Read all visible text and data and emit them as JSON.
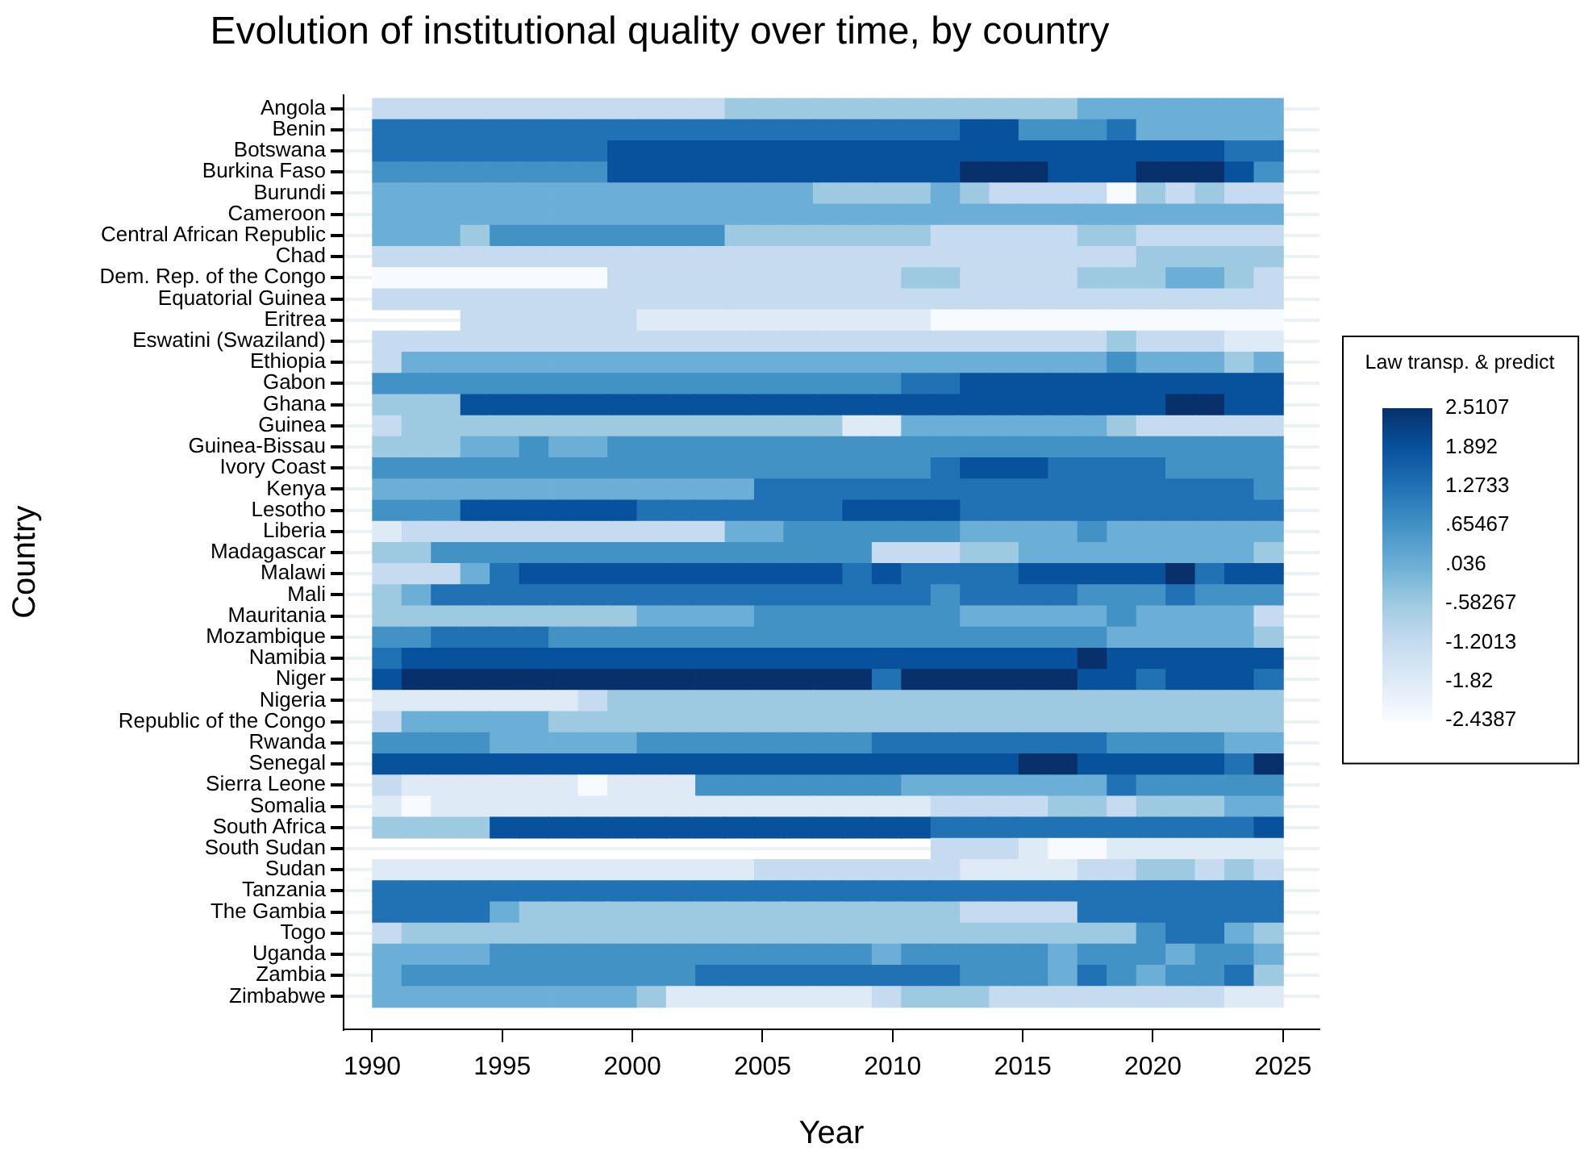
{
  "chart_data": {
    "type": "heatmap",
    "title": "Evolution of institutional quality over time, by country",
    "xlabel": "Year",
    "ylabel": "Country",
    "clabel": "Law transp. & predict",
    "x": [
      1990.56,
      1991.69,
      1992.82,
      1993.95,
      1995.08,
      1996.21,
      1997.34,
      1998.47,
      1999.6,
      2000.73,
      2001.85,
      2002.98,
      2004.11,
      2005.24,
      2006.37,
      2007.5,
      2008.63,
      2009.76,
      2010.89,
      2012.02,
      2013.15,
      2014.27,
      2015.4,
      2016.53,
      2017.66,
      2018.79,
      2019.92,
      2021.05,
      2022.18,
      2023.31,
      2024.44
    ],
    "xlim": [
      1988.9,
      2026.4
    ],
    "xticks": [
      1990,
      1995,
      2000,
      2005,
      2010,
      2015,
      2020,
      2025
    ],
    "grid": "y",
    "y_categories": [
      "Angola",
      "Benin",
      "Botswana",
      "Burkina Faso",
      "Burundi",
      "Cameroon",
      "Central African Republic",
      "Chad",
      "Dem. Rep. of the Congo",
      "Equatorial Guinea",
      "Eritrea",
      "Eswatini (Swaziland)",
      "Ethiopia",
      "Gabon",
      "Ghana",
      "Guinea",
      "Guinea-Bissau",
      "Ivory Coast",
      "Kenya",
      "Lesotho",
      "Liberia",
      "Madagascar",
      "Malawi",
      "Mali",
      "Mauritania",
      "Mozambique",
      "Namibia",
      "Niger",
      "Nigeria",
      "Republic of the Congo",
      "Rwanda",
      "Senegal",
      "Sierra Leone",
      "Somalia",
      "South Africa",
      "South Sudan",
      "Sudan",
      "Tanzania",
      "The Gambia",
      "Togo",
      "Uganda",
      "Zambia",
      "Zimbabwe"
    ],
    "cticks": [
      2.5107,
      1.892,
      1.2733,
      {
        "value": 0.65467,
        "label": ".65467"
      },
      {
        "value": 0.036,
        "label": ".036"
      },
      {
        "value": -0.58267,
        "label": "-.58267"
      },
      -1.2013,
      -1.82,
      -2.4387
    ],
    "clim": [
      -2.4387,
      2.5107
    ],
    "colors": [
      "#08306b",
      "#08519c",
      "#2171b5",
      "#4292c6",
      "#6baed6",
      "#9ecae1",
      "#c6dbef",
      "#deebf7",
      "#f7fbff"
    ],
    "cells": [
      [
        -1.2013,
        -1.2013,
        -1.2013,
        -1.2013,
        -1.2013,
        -1.2013,
        -1.2013,
        -1.2013,
        -1.2013,
        -1.2013,
        -1.2013,
        -1.2013,
        -0.58267,
        -0.58267,
        -0.58267,
        -0.58267,
        -0.58267,
        -0.58267,
        -0.58267,
        -0.58267,
        -0.58267,
        -0.58267,
        -0.58267,
        -0.58267,
        0.036,
        0.036,
        0.036,
        0.036,
        0.036,
        0.036,
        0.036
      ],
      [
        1.2733,
        1.2733,
        1.2733,
        1.2733,
        1.2733,
        1.2733,
        1.2733,
        1.2733,
        1.2733,
        1.2733,
        1.2733,
        1.2733,
        1.2733,
        1.2733,
        1.2733,
        1.2733,
        1.2733,
        1.2733,
        1.2733,
        1.2733,
        1.892,
        1.892,
        0.65467,
        0.65467,
        0.65467,
        1.2733,
        0.036,
        0.036,
        0.036,
        0.036,
        0.036
      ],
      [
        1.2733,
        1.2733,
        1.2733,
        1.2733,
        1.2733,
        1.2733,
        1.2733,
        1.2733,
        1.892,
        1.892,
        1.892,
        1.892,
        1.892,
        1.892,
        1.892,
        1.892,
        1.892,
        1.892,
        1.892,
        1.892,
        1.892,
        1.892,
        1.892,
        1.892,
        1.892,
        1.892,
        1.892,
        1.892,
        1.892,
        1.2733,
        1.2733
      ],
      [
        0.65467,
        0.65467,
        0.65467,
        0.65467,
        0.65467,
        0.65467,
        0.65467,
        0.65467,
        1.892,
        1.892,
        1.892,
        1.892,
        1.892,
        1.892,
        1.892,
        1.892,
        1.892,
        1.892,
        1.892,
        1.892,
        2.5107,
        2.5107,
        2.5107,
        1.892,
        1.892,
        1.892,
        2.5107,
        2.5107,
        2.5107,
        1.892,
        0.65467
      ],
      [
        0.036,
        0.036,
        0.036,
        0.036,
        0.036,
        0.036,
        0.036,
        0.036,
        0.036,
        0.036,
        0.036,
        0.036,
        0.036,
        0.036,
        0.036,
        -0.58267,
        -0.58267,
        -0.58267,
        -0.58267,
        0.036,
        -0.58267,
        -1.2013,
        -1.2013,
        -1.2013,
        -1.2013,
        -2.4387,
        -0.58267,
        -1.2013,
        -0.58267,
        -1.2013,
        -1.2013
      ],
      [
        0.036,
        0.036,
        0.036,
        0.036,
        0.036,
        0.036,
        0.036,
        0.036,
        0.036,
        0.036,
        0.036,
        0.036,
        0.036,
        0.036,
        0.036,
        0.036,
        0.036,
        0.036,
        0.036,
        0.036,
        0.036,
        0.036,
        0.036,
        0.036,
        0.036,
        0.036,
        0.036,
        0.036,
        0.036,
        0.036,
        0.036
      ],
      [
        0.036,
        0.036,
        0.036,
        -0.58267,
        0.65467,
        0.65467,
        0.65467,
        0.65467,
        0.65467,
        0.65467,
        0.65467,
        0.65467,
        -0.58267,
        -0.58267,
        -0.58267,
        -0.58267,
        -0.58267,
        -0.58267,
        -0.58267,
        -1.2013,
        -1.2013,
        -1.2013,
        -1.2013,
        -1.2013,
        -0.58267,
        -0.58267,
        -1.2013,
        -1.2013,
        -1.2013,
        -1.2013,
        -1.2013
      ],
      [
        -1.2013,
        -1.2013,
        -1.2013,
        -1.2013,
        -1.2013,
        -1.2013,
        -1.2013,
        -1.2013,
        -1.2013,
        -1.2013,
        -1.2013,
        -1.2013,
        -1.2013,
        -1.2013,
        -1.2013,
        -1.2013,
        -1.2013,
        -1.2013,
        -1.2013,
        -1.2013,
        -1.2013,
        -1.2013,
        -1.2013,
        -1.2013,
        -1.2013,
        -1.2013,
        -0.58267,
        -0.58267,
        -0.58267,
        -0.58267,
        -0.58267
      ],
      [
        -2.4387,
        -2.4387,
        -2.4387,
        -2.4387,
        -2.4387,
        -2.4387,
        -2.4387,
        -2.4387,
        -1.2013,
        -1.2013,
        -1.2013,
        -1.2013,
        -1.2013,
        -1.2013,
        -1.2013,
        -1.2013,
        -1.2013,
        -1.2013,
        -0.58267,
        -0.58267,
        -1.2013,
        -1.2013,
        -1.2013,
        -1.2013,
        -0.58267,
        -0.58267,
        -0.58267,
        0.036,
        0.036,
        -0.58267,
        -1.2013
      ],
      [
        -1.2013,
        -1.2013,
        -1.2013,
        -1.2013,
        -1.2013,
        -1.2013,
        -1.2013,
        -1.2013,
        -1.2013,
        -1.2013,
        -1.2013,
        -1.2013,
        -1.2013,
        -1.2013,
        -1.2013,
        -1.2013,
        -1.2013,
        -1.2013,
        -1.2013,
        -1.2013,
        -1.2013,
        -1.2013,
        -1.2013,
        -1.2013,
        -1.2013,
        -1.2013,
        -1.2013,
        -1.2013,
        -1.2013,
        -1.2013,
        -1.2013
      ],
      [
        null,
        null,
        null,
        -1.2013,
        -1.2013,
        -1.2013,
        -1.2013,
        -1.2013,
        -1.2013,
        -1.82,
        -1.82,
        -1.82,
        -1.82,
        -1.82,
        -1.82,
        -1.82,
        -1.82,
        -1.82,
        -1.82,
        -2.4387,
        -2.4387,
        -2.4387,
        -2.4387,
        -2.4387,
        -2.4387,
        -2.4387,
        -2.4387,
        -2.4387,
        -2.4387,
        -2.4387,
        -2.4387
      ],
      [
        -1.2013,
        -1.2013,
        -1.2013,
        -1.2013,
        -1.2013,
        -1.2013,
        -1.2013,
        -1.2013,
        -1.2013,
        -1.2013,
        -1.2013,
        -1.2013,
        -1.2013,
        -1.2013,
        -1.2013,
        -1.2013,
        -1.2013,
        -1.2013,
        -1.2013,
        -1.2013,
        -1.2013,
        -1.2013,
        -1.2013,
        -1.2013,
        -1.2013,
        -0.58267,
        -1.2013,
        -1.2013,
        -1.2013,
        -1.82,
        -1.82
      ],
      [
        -1.2013,
        0.036,
        0.036,
        0.036,
        0.036,
        0.036,
        0.036,
        0.036,
        0.036,
        0.036,
        0.036,
        0.036,
        0.036,
        0.036,
        0.036,
        0.036,
        0.036,
        0.036,
        0.036,
        0.036,
        0.036,
        0.036,
        0.036,
        0.036,
        0.036,
        0.65467,
        0.036,
        0.036,
        0.036,
        -0.58267,
        0.036
      ],
      [
        0.65467,
        0.65467,
        0.65467,
        0.65467,
        0.65467,
        0.65467,
        0.65467,
        0.65467,
        0.65467,
        0.65467,
        0.65467,
        0.65467,
        0.65467,
        0.65467,
        0.65467,
        0.65467,
        0.65467,
        0.65467,
        1.2733,
        1.2733,
        1.892,
        1.892,
        1.892,
        1.892,
        1.892,
        1.892,
        1.892,
        1.892,
        1.892,
        1.892,
        1.892
      ],
      [
        -0.58267,
        -0.58267,
        -0.58267,
        1.892,
        1.892,
        1.892,
        1.892,
        1.892,
        1.892,
        1.892,
        1.892,
        1.892,
        1.892,
        1.892,
        1.892,
        1.892,
        1.892,
        1.892,
        1.892,
        1.892,
        1.892,
        1.892,
        1.892,
        1.892,
        1.892,
        1.892,
        1.892,
        2.5107,
        2.5107,
        1.892,
        1.892
      ],
      [
        -1.2013,
        -0.58267,
        -0.58267,
        -0.58267,
        -0.58267,
        -0.58267,
        -0.58267,
        -0.58267,
        -0.58267,
        -0.58267,
        -0.58267,
        -0.58267,
        -0.58267,
        -0.58267,
        -0.58267,
        -0.58267,
        -1.82,
        -1.82,
        0.036,
        0.036,
        0.036,
        0.036,
        0.036,
        0.036,
        0.036,
        -0.58267,
        -1.2013,
        -1.2013,
        -1.2013,
        -1.2013,
        -1.2013
      ],
      [
        -0.58267,
        -0.58267,
        -0.58267,
        0.036,
        0.036,
        0.65467,
        0.036,
        0.036,
        0.65467,
        0.65467,
        0.65467,
        0.65467,
        0.65467,
        0.65467,
        0.65467,
        0.65467,
        0.65467,
        0.65467,
        0.65467,
        0.65467,
        0.65467,
        0.65467,
        0.65467,
        0.65467,
        0.65467,
        0.65467,
        0.65467,
        0.65467,
        0.65467,
        0.65467,
        0.65467
      ],
      [
        0.65467,
        0.65467,
        0.65467,
        0.65467,
        0.65467,
        0.65467,
        0.65467,
        0.65467,
        0.65467,
        0.65467,
        0.65467,
        0.65467,
        0.65467,
        0.65467,
        0.65467,
        0.65467,
        0.65467,
        0.65467,
        0.65467,
        1.2733,
        1.892,
        1.892,
        1.892,
        1.2733,
        1.2733,
        1.2733,
        1.2733,
        0.65467,
        0.65467,
        0.65467,
        0.65467
      ],
      [
        0.036,
        0.036,
        0.036,
        0.036,
        0.036,
        0.036,
        0.036,
        0.036,
        0.036,
        0.036,
        0.036,
        0.036,
        0.036,
        1.2733,
        1.2733,
        1.2733,
        1.2733,
        1.2733,
        1.2733,
        1.2733,
        1.2733,
        1.2733,
        1.2733,
        1.2733,
        1.2733,
        1.2733,
        1.2733,
        1.2733,
        1.2733,
        1.2733,
        0.65467
      ],
      [
        0.65467,
        0.65467,
        0.65467,
        1.892,
        1.892,
        1.892,
        1.892,
        1.892,
        1.892,
        1.2733,
        1.2733,
        1.2733,
        1.2733,
        1.2733,
        1.2733,
        1.2733,
        1.892,
        1.892,
        1.892,
        1.892,
        1.2733,
        1.2733,
        1.2733,
        1.2733,
        1.2733,
        1.2733,
        1.2733,
        1.2733,
        1.2733,
        1.2733,
        1.2733
      ],
      [
        -1.82,
        -1.2013,
        -1.2013,
        -1.2013,
        -1.2013,
        -1.2013,
        -1.2013,
        -1.2013,
        -1.2013,
        -1.2013,
        -1.2013,
        -1.2013,
        0.036,
        0.036,
        0.65467,
        0.65467,
        0.65467,
        0.65467,
        0.65467,
        0.65467,
        0.036,
        0.036,
        0.036,
        0.036,
        0.65467,
        0.036,
        0.036,
        0.036,
        0.036,
        0.036,
        0.036
      ],
      [
        -0.58267,
        -0.58267,
        0.65467,
        0.65467,
        0.65467,
        0.65467,
        0.65467,
        0.65467,
        0.65467,
        0.65467,
        0.65467,
        0.65467,
        0.65467,
        0.65467,
        0.65467,
        0.65467,
        0.65467,
        -1.2013,
        -1.2013,
        -1.2013,
        -0.58267,
        -0.58267,
        0.036,
        0.036,
        0.036,
        0.036,
        0.036,
        0.036,
        0.036,
        0.036,
        -0.58267
      ],
      [
        -1.2013,
        -1.2013,
        -1.2013,
        0.036,
        1.2733,
        1.892,
        1.892,
        1.892,
        1.892,
        1.892,
        1.892,
        1.892,
        1.892,
        1.892,
        1.892,
        1.892,
        1.2733,
        1.892,
        1.2733,
        1.2733,
        1.2733,
        1.2733,
        1.892,
        1.892,
        1.892,
        1.892,
        1.892,
        2.5107,
        1.2733,
        1.892,
        1.892
      ],
      [
        -0.58267,
        0.036,
        1.2733,
        1.2733,
        1.2733,
        1.2733,
        1.2733,
        1.2733,
        1.2733,
        1.2733,
        1.2733,
        1.2733,
        1.2733,
        1.2733,
        1.2733,
        1.2733,
        1.2733,
        1.2733,
        1.2733,
        0.65467,
        1.2733,
        1.2733,
        1.2733,
        1.2733,
        0.65467,
        0.65467,
        0.65467,
        1.2733,
        0.65467,
        0.65467,
        0.65467
      ],
      [
        -0.58267,
        -0.58267,
        -0.58267,
        -0.58267,
        -0.58267,
        -0.58267,
        -0.58267,
        -0.58267,
        -0.58267,
        0.036,
        0.036,
        0.036,
        0.036,
        0.65467,
        0.65467,
        0.65467,
        0.65467,
        0.65467,
        0.65467,
        0.65467,
        0.036,
        0.036,
        0.036,
        0.036,
        0.036,
        0.65467,
        0.036,
        0.036,
        0.036,
        0.036,
        -1.2013
      ],
      [
        0.65467,
        0.65467,
        1.2733,
        1.2733,
        1.2733,
        1.2733,
        0.65467,
        0.65467,
        0.65467,
        0.65467,
        0.65467,
        0.65467,
        0.65467,
        0.65467,
        0.65467,
        0.65467,
        0.65467,
        0.65467,
        0.65467,
        0.65467,
        0.65467,
        0.65467,
        0.65467,
        0.65467,
        0.65467,
        0.036,
        0.036,
        0.036,
        0.036,
        0.036,
        -0.58267
      ],
      [
        1.2733,
        1.892,
        1.892,
        1.892,
        1.892,
        1.892,
        1.892,
        1.892,
        1.892,
        1.892,
        1.892,
        1.892,
        1.892,
        1.892,
        1.892,
        1.892,
        1.892,
        1.892,
        1.892,
        1.892,
        1.892,
        1.892,
        1.892,
        1.892,
        2.5107,
        1.892,
        1.892,
        1.892,
        1.892,
        1.892,
        1.892
      ],
      [
        1.892,
        2.5107,
        2.5107,
        2.5107,
        2.5107,
        2.5107,
        2.5107,
        2.5107,
        2.5107,
        2.5107,
        2.5107,
        2.5107,
        2.5107,
        2.5107,
        2.5107,
        2.5107,
        2.5107,
        1.2733,
        2.5107,
        2.5107,
        2.5107,
        2.5107,
        2.5107,
        2.5107,
        1.892,
        1.892,
        1.2733,
        1.892,
        1.892,
        1.892,
        1.2733
      ],
      [
        -1.82,
        -1.82,
        -1.82,
        -1.82,
        -1.82,
        -1.82,
        -1.82,
        -1.2013,
        -0.58267,
        -0.58267,
        -0.58267,
        -0.58267,
        -0.58267,
        -0.58267,
        -0.58267,
        -0.58267,
        -0.58267,
        -0.58267,
        -0.58267,
        -0.58267,
        -0.58267,
        -0.58267,
        -0.58267,
        -0.58267,
        -0.58267,
        -0.58267,
        -0.58267,
        -0.58267,
        -0.58267,
        -0.58267,
        -0.58267
      ],
      [
        -1.2013,
        0.036,
        0.036,
        0.036,
        0.036,
        0.036,
        -0.58267,
        -0.58267,
        -0.58267,
        -0.58267,
        -0.58267,
        -0.58267,
        -0.58267,
        -0.58267,
        -0.58267,
        -0.58267,
        -0.58267,
        -0.58267,
        -0.58267,
        -0.58267,
        -0.58267,
        -0.58267,
        -0.58267,
        -0.58267,
        -0.58267,
        -0.58267,
        -0.58267,
        -0.58267,
        -0.58267,
        -0.58267,
        -0.58267
      ],
      [
        0.65467,
        0.65467,
        0.65467,
        0.65467,
        0.036,
        0.036,
        0.036,
        0.036,
        0.036,
        0.65467,
        0.65467,
        0.65467,
        0.65467,
        0.65467,
        0.65467,
        0.65467,
        0.65467,
        1.2733,
        1.2733,
        1.2733,
        1.2733,
        1.2733,
        1.2733,
        1.2733,
        1.2733,
        0.65467,
        0.65467,
        0.65467,
        0.65467,
        0.036,
        0.036
      ],
      [
        1.892,
        1.892,
        1.892,
        1.892,
        1.892,
        1.892,
        1.892,
        1.892,
        1.892,
        1.892,
        1.892,
        1.892,
        1.892,
        1.892,
        1.892,
        1.892,
        1.892,
        1.892,
        1.892,
        1.892,
        1.892,
        1.892,
        2.5107,
        2.5107,
        1.892,
        1.892,
        1.892,
        1.892,
        1.892,
        1.2733,
        2.5107
      ],
      [
        -1.2013,
        -1.82,
        -1.82,
        -1.82,
        -1.82,
        -1.82,
        -1.82,
        -2.4387,
        -1.82,
        -1.82,
        -1.82,
        0.65467,
        0.65467,
        0.65467,
        0.65467,
        0.65467,
        0.65467,
        0.65467,
        0.036,
        0.036,
        0.036,
        0.036,
        0.036,
        0.036,
        0.036,
        1.2733,
        0.65467,
        0.65467,
        0.65467,
        0.65467,
        0.65467
      ],
      [
        -1.82,
        -2.4387,
        -1.82,
        -1.82,
        -1.82,
        -1.82,
        -1.82,
        -1.82,
        -1.82,
        -1.82,
        -1.82,
        -1.82,
        -1.82,
        -1.82,
        -1.82,
        -1.82,
        -1.82,
        -1.82,
        -1.82,
        -1.2013,
        -1.2013,
        -1.2013,
        -1.2013,
        -0.58267,
        -0.58267,
        -1.2013,
        -0.58267,
        -0.58267,
        -0.58267,
        0.036,
        0.036
      ],
      [
        -0.58267,
        -0.58267,
        -0.58267,
        -0.58267,
        1.892,
        1.892,
        1.892,
        1.892,
        1.892,
        1.892,
        1.892,
        1.892,
        1.892,
        1.892,
        1.892,
        1.892,
        1.892,
        1.892,
        1.892,
        1.2733,
        1.2733,
        1.2733,
        1.2733,
        1.2733,
        1.2733,
        1.2733,
        1.2733,
        1.2733,
        1.2733,
        1.2733,
        1.892
      ],
      [
        null,
        null,
        null,
        null,
        null,
        null,
        null,
        null,
        null,
        null,
        null,
        null,
        null,
        null,
        null,
        null,
        null,
        null,
        null,
        -1.2013,
        -1.2013,
        -1.2013,
        -1.82,
        -2.4387,
        -2.4387,
        -1.82,
        -1.82,
        -1.82,
        -1.82,
        -1.82,
        -1.82
      ],
      [
        -1.82,
        -1.82,
        -1.82,
        -1.82,
        -1.82,
        -1.82,
        -1.82,
        -1.82,
        -1.82,
        -1.82,
        -1.82,
        -1.82,
        -1.82,
        -1.2013,
        -1.2013,
        -1.2013,
        -1.2013,
        -1.2013,
        -1.2013,
        -1.2013,
        -1.82,
        -1.82,
        -1.82,
        -1.82,
        -1.2013,
        -1.2013,
        -0.58267,
        -0.58267,
        -1.2013,
        -0.58267,
        -1.2013
      ],
      [
        1.2733,
        1.2733,
        1.2733,
        1.2733,
        1.2733,
        1.2733,
        1.2733,
        1.2733,
        1.2733,
        1.2733,
        1.2733,
        1.2733,
        1.2733,
        1.2733,
        1.2733,
        1.2733,
        1.2733,
        1.2733,
        1.2733,
        1.2733,
        1.2733,
        1.2733,
        1.2733,
        1.2733,
        1.2733,
        1.2733,
        1.2733,
        1.2733,
        1.2733,
        1.2733,
        1.2733
      ],
      [
        1.2733,
        1.2733,
        1.2733,
        1.2733,
        0.036,
        -0.58267,
        -0.58267,
        -0.58267,
        -0.58267,
        -0.58267,
        -0.58267,
        -0.58267,
        -0.58267,
        -0.58267,
        -0.58267,
        -0.58267,
        -0.58267,
        -0.58267,
        -0.58267,
        -0.58267,
        -1.2013,
        -1.2013,
        -1.2013,
        -1.2013,
        1.2733,
        1.2733,
        1.2733,
        1.2733,
        1.2733,
        1.2733,
        1.2733
      ],
      [
        -1.2013,
        -0.58267,
        -0.58267,
        -0.58267,
        -0.58267,
        -0.58267,
        -0.58267,
        -0.58267,
        -0.58267,
        -0.58267,
        -0.58267,
        -0.58267,
        -0.58267,
        -0.58267,
        -0.58267,
        -0.58267,
        -0.58267,
        -0.58267,
        -0.58267,
        -0.58267,
        -0.58267,
        -0.58267,
        -0.58267,
        -0.58267,
        -0.58267,
        -0.58267,
        0.65467,
        1.2733,
        1.2733,
        0.036,
        -0.58267
      ],
      [
        0.036,
        0.036,
        0.036,
        0.036,
        0.65467,
        0.65467,
        0.65467,
        0.65467,
        0.65467,
        0.65467,
        0.65467,
        0.65467,
        0.65467,
        0.65467,
        0.65467,
        0.65467,
        0.65467,
        0.036,
        0.65467,
        0.65467,
        0.65467,
        0.65467,
        0.65467,
        0.036,
        0.65467,
        0.65467,
        0.65467,
        0.036,
        0.65467,
        0.65467,
        0.036
      ],
      [
        0.036,
        0.65467,
        0.65467,
        0.65467,
        0.65467,
        0.65467,
        0.65467,
        0.65467,
        0.65467,
        0.65467,
        0.65467,
        1.2733,
        1.2733,
        1.2733,
        1.2733,
        1.2733,
        1.2733,
        1.2733,
        1.2733,
        1.2733,
        0.65467,
        0.65467,
        0.65467,
        0.036,
        1.2733,
        0.65467,
        0.036,
        0.65467,
        0.65467,
        1.2733,
        -0.58267
      ],
      [
        0.036,
        0.036,
        0.036,
        0.036,
        0.036,
        0.036,
        0.036,
        0.036,
        0.036,
        -0.58267,
        -1.82,
        -1.82,
        -1.82,
        -1.82,
        -1.82,
        -1.82,
        -1.82,
        -1.2013,
        -0.58267,
        -0.58267,
        -0.58267,
        -1.2013,
        -1.2013,
        -1.2013,
        -1.2013,
        -1.2013,
        -1.2013,
        -1.2013,
        -1.2013,
        -1.82,
        -1.82
      ]
    ]
  }
}
